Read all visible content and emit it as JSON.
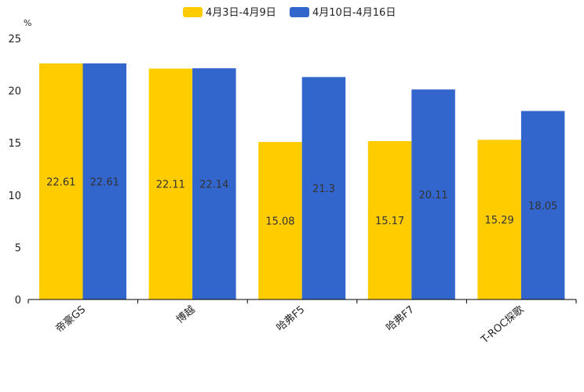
{
  "chart_data": {
    "type": "bar",
    "title": "",
    "ylabel": "%",
    "xlabel": "",
    "ylim": [
      0,
      25
    ],
    "yticks": [
      0,
      5,
      10,
      15,
      20,
      25
    ],
    "grid": false,
    "legend_position": "top-center",
    "categories": [
      "帝豪GS",
      "博越",
      "哈弗F5",
      "哈弗F7",
      "T-ROC探歌"
    ],
    "series": [
      {
        "name": "4月3日-4月9日",
        "color": "#FFCC00",
        "values": [
          22.61,
          22.11,
          15.08,
          15.17,
          15.29
        ],
        "labels": [
          "22.61",
          "22.11",
          "15.08",
          "15.17",
          "15.29"
        ]
      },
      {
        "name": "4月10日-4月16日",
        "color": "#3366CC",
        "values": [
          22.61,
          22.14,
          21.3,
          20.11,
          18.05
        ],
        "labels": [
          "22.61",
          "22.14",
          "21.3",
          "20.11",
          "18.05"
        ]
      }
    ]
  }
}
